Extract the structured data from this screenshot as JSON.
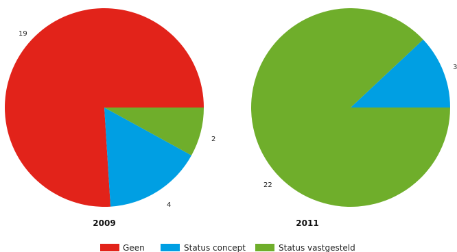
{
  "chart_data": [
    {
      "type": "pie",
      "title": "2009",
      "slices": [
        {
          "label": "Geen",
          "value": 19,
          "color": "#e2231a"
        },
        {
          "label": "Status concept",
          "value": 4,
          "color": "#009fe3"
        },
        {
          "label": "Status vastgesteld",
          "value": 2,
          "color": "#6fae2b"
        }
      ]
    },
    {
      "type": "pie",
      "title": "2011",
      "slices": [
        {
          "label": "Status concept",
          "value": 3,
          "color": "#009fe3"
        },
        {
          "label": "Status vastgesteld",
          "value": 22,
          "color": "#6fae2b"
        }
      ]
    }
  ],
  "legend": {
    "placement": "bottom",
    "items": [
      {
        "label": "Geen",
        "color": "#e2231a"
      },
      {
        "label": "Status concept",
        "color": "#009fe3"
      },
      {
        "label": "Status vastgesteld",
        "color": "#6fae2b"
      }
    ]
  }
}
